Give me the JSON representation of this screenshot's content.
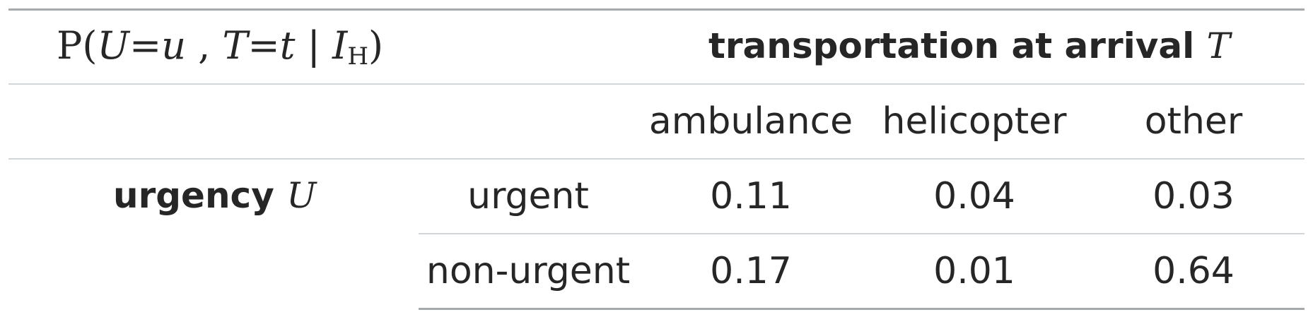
{
  "formula": {
    "p": "P",
    "open": "(",
    "var_u": "U",
    "eq1": "=",
    "val_u": "u",
    "comma": " , ",
    "var_t": "T",
    "eq2": "=",
    "val_t": "t",
    "bar": " | ",
    "cond": "I",
    "cond_sub": "H",
    "close": ")"
  },
  "column_group": {
    "label": "transportation at arrival",
    "symbol": "T"
  },
  "columns": [
    "ambulance",
    "helicopter",
    "other"
  ],
  "row_group": {
    "label": "urgency",
    "symbol": "U"
  },
  "rows": [
    {
      "label": "urgent",
      "values": [
        "0.11",
        "0.04",
        "0.03"
      ]
    },
    {
      "label": "non-urgent",
      "values": [
        "0.17",
        "0.01",
        "0.64"
      ]
    }
  ]
}
